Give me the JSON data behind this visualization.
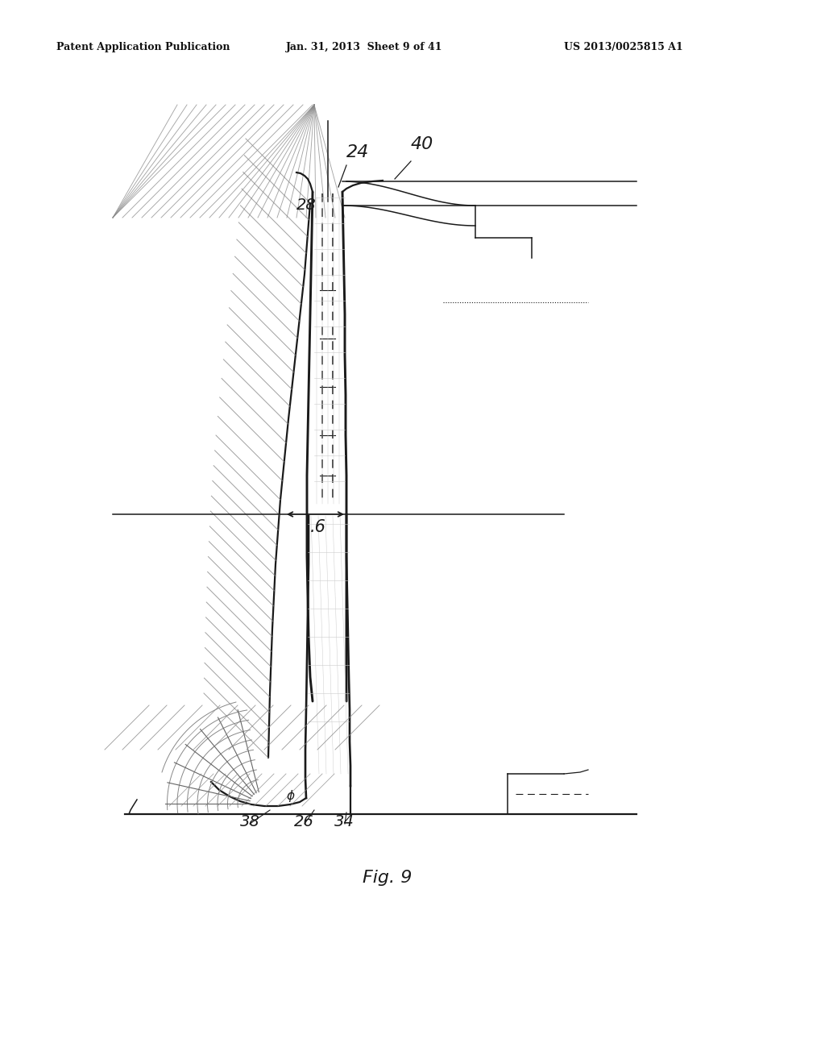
{
  "bg_color": "#ffffff",
  "header_left": "Patent Application Publication",
  "header_mid": "Jan. 31, 2013  Sheet 9 of 41",
  "header_right": "US 2013/0025815 A1",
  "figure_label": "Fig. 9"
}
